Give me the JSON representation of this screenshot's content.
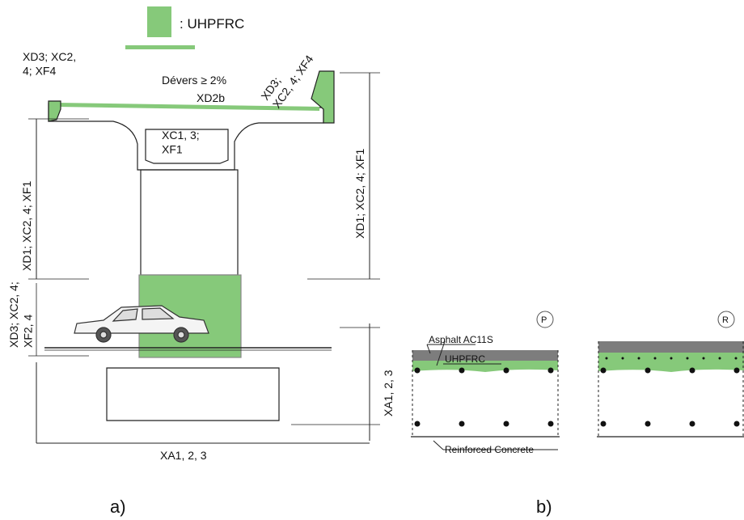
{
  "legend": {
    "label": ": UHPFRC",
    "color": "#86c97a"
  },
  "colors": {
    "uhpfrc": "#86c97a",
    "asphalt": "#7d7d7d",
    "line": "#222222"
  },
  "bridge": {
    "left_cornice": "XD3; XC2,\n4; XF4",
    "right_cornice": "XD3;\nXC2, 4; XF4",
    "crossfall": "Dévers ≥ 2%",
    "deck_surface": "XD2b",
    "box_interior": "XC1, 3;\nXF1",
    "left_pier": "XD1; XC2, 4; XF1",
    "right_pier": "XD1; XC2, 4; XF1",
    "splash_zone": "XD3; XC2, 4;\nXF2, 4",
    "foundation_side": "XA1, 2, 3",
    "foundation_bottom": "XA1, 2, 3"
  },
  "sections": {
    "asphalt": "Asphalt AC11S",
    "uhpfrc": "UHPFRC",
    "concrete": "Reinforced Concrete",
    "section_p": "P",
    "section_r": "R"
  },
  "panel_labels": {
    "a": "a)",
    "b": "b)"
  }
}
